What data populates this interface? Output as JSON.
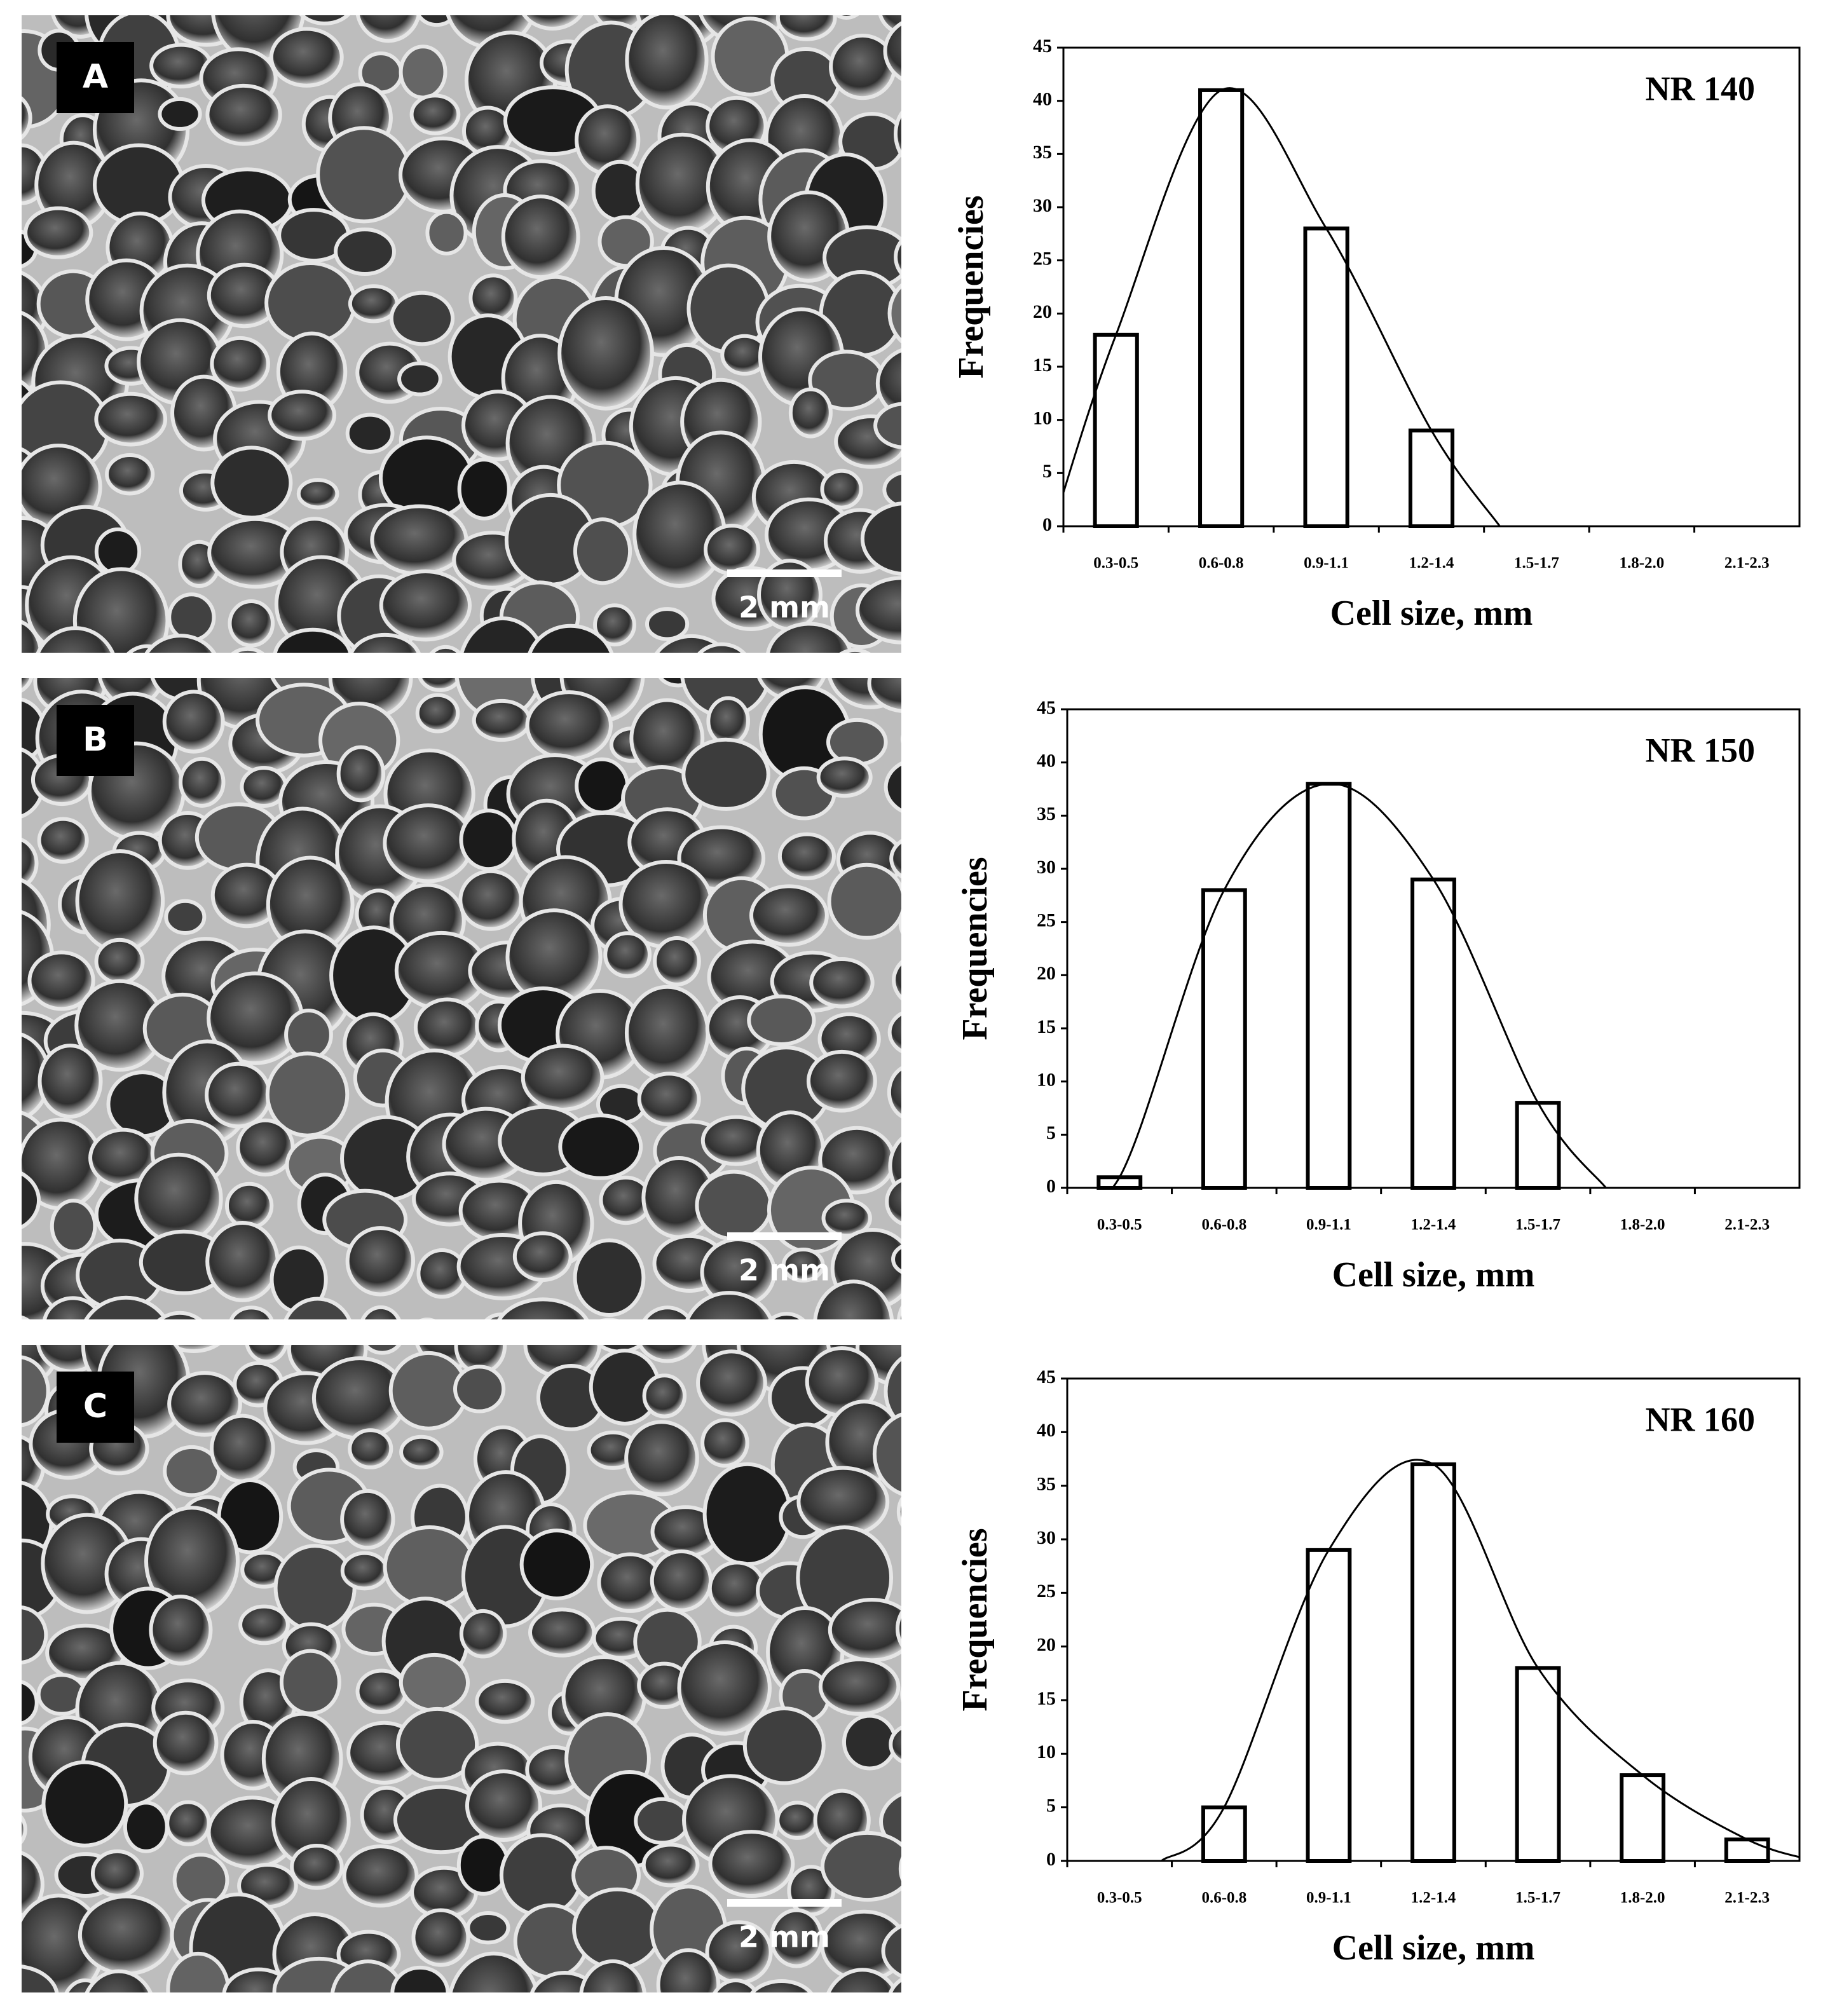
{
  "chart_data": [
    {
      "type": "bar",
      "title": "NR 140",
      "x_label": "Cell size, mm",
      "y_label": "Frequencies",
      "categories": [
        "0.3-0.5",
        "0.6-0.8",
        "0.9-1.1",
        "1.2-1.4",
        "1.5-1.7",
        "1.8-2.0",
        "2.1-2.3"
      ],
      "values": [
        18,
        41,
        28,
        9,
        0,
        0,
        0
      ],
      "color": "#ffffff",
      "ylim": [
        0,
        45
      ],
      "yticks": [
        0,
        5,
        10,
        15,
        20,
        25,
        30,
        35,
        40,
        45
      ],
      "image": {
        "panel": "A",
        "scale_bar": "2 mm"
      }
    },
    {
      "type": "bar",
      "title": "NR 150",
      "x_label": "Cell size, mm",
      "y_label": "Frequencies",
      "categories": [
        "0.3-0.5",
        "0.6-0.8",
        "0.9-1.1",
        "1.2-1.4",
        "1.5-1.7",
        "1.8-2.0",
        "2.1-2.3"
      ],
      "values": [
        1,
        28,
        38,
        29,
        8,
        0,
        0
      ],
      "color": "#ffffff",
      "ylim": [
        0,
        45
      ],
      "yticks": [
        0,
        5,
        10,
        15,
        20,
        25,
        30,
        35,
        40,
        45
      ],
      "image": {
        "panel": "B",
        "scale_bar": "2 mm"
      }
    },
    {
      "type": "bar",
      "title": "NR 160",
      "x_label": "Cell size, mm",
      "y_label": "Frequencies",
      "categories": [
        "0.3-0.5",
        "0.6-0.8",
        "0.9-1.1",
        "1.2-1.4",
        "1.5-1.7",
        "1.8-2.0",
        "2.1-2.3"
      ],
      "values": [
        0,
        5,
        29,
        37,
        18,
        8,
        2
      ],
      "color": "#ffffff",
      "ylim": [
        0,
        45
      ],
      "yticks": [
        0,
        5,
        10,
        15,
        20,
        25,
        30,
        35,
        40,
        45
      ],
      "image": {
        "panel": "C",
        "scale_bar": "2 mm"
      }
    }
  ]
}
